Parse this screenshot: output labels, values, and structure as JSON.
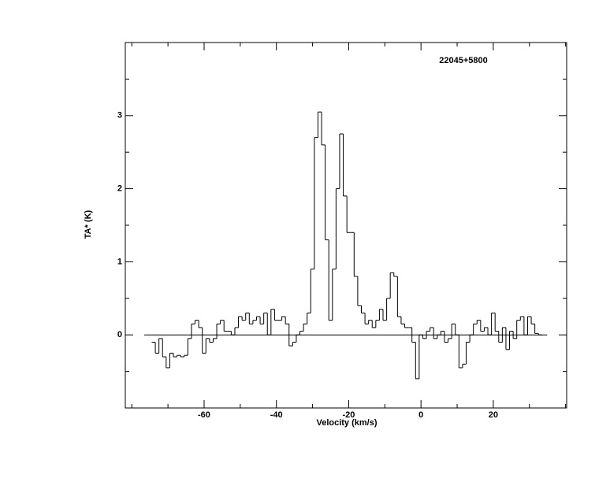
{
  "chart_data": {
    "type": "step",
    "annotation": "22045+5800",
    "x_label": "Velocity (km/s)",
    "y_label": "TA* (K)",
    "xlim": [
      -81.8,
      40.3
    ],
    "ylim": [
      -1,
      4
    ],
    "xticks": [
      -60,
      -40,
      -20,
      0,
      20
    ],
    "xticks_minor": [
      -80,
      -70,
      -50,
      -30,
      -10,
      10,
      30,
      40
    ],
    "yticks": [
      0,
      1,
      2,
      3
    ],
    "yticks_minor": [
      -0.5,
      0.5,
      1.5,
      2.5,
      3.5
    ],
    "zero_line": {
      "value": 0,
      "xlim": [
        -76.6,
        34.9
      ]
    },
    "color": "#000000",
    "x": [
      -74,
      -73,
      -72,
      -71,
      -70,
      -69,
      -68,
      -67,
      -66,
      -65,
      -64,
      -63,
      -62,
      -61,
      -60,
      -59,
      -58,
      -57,
      -56,
      -55,
      -54,
      -53,
      -52,
      -51,
      -50,
      -49,
      -48,
      -47,
      -46,
      -45,
      -44,
      -43,
      -42,
      -41,
      -40,
      -39,
      -38,
      -37,
      -36,
      -35,
      -34,
      -33,
      -32,
      -31,
      -30,
      -29,
      -28,
      -27,
      -26,
      -25,
      -24,
      -23,
      -22,
      -21,
      -20,
      -19,
      -18,
      -17,
      -16,
      -15,
      -14,
      -13,
      -12,
      -11,
      -10,
      -9,
      -8,
      -7,
      -6,
      -5,
      -4,
      -3,
      -2,
      -1,
      0,
      1,
      2,
      3,
      4,
      5,
      6,
      7,
      8,
      9,
      10,
      11,
      12,
      13,
      14,
      15,
      16,
      17,
      18,
      19,
      20,
      21,
      22,
      23,
      24,
      25,
      26,
      27,
      28,
      29,
      30,
      31,
      32,
      33
    ],
    "values": [
      -0.1,
      -0.25,
      -0.05,
      -0.3,
      -0.45,
      -0.25,
      -0.3,
      -0.28,
      -0.3,
      -0.28,
      -0.05,
      0.15,
      0.2,
      0.1,
      -0.25,
      -0.05,
      -0.1,
      -0.05,
      0.15,
      0.2,
      0.05,
      0.05,
      0.0,
      0.1,
      0.25,
      0.2,
      0.3,
      0.15,
      0.2,
      0.25,
      0.15,
      0.3,
      0.0,
      0.35,
      0.2,
      0.2,
      0.25,
      0.15,
      -0.15,
      -0.1,
      0.0,
      0.05,
      0.15,
      0.3,
      0.9,
      2.7,
      3.05,
      2.6,
      1.3,
      0.2,
      0.9,
      2.0,
      2.75,
      1.9,
      1.4,
      1.4,
      0.8,
      0.4,
      0.3,
      0.15,
      0.2,
      0.1,
      0.2,
      0.35,
      0.2,
      0.5,
      0.85,
      0.8,
      0.25,
      0.15,
      0.1,
      0.1,
      -0.1,
      -0.6,
      0.0,
      -0.05,
      0.05,
      0.1,
      -0.05,
      0.0,
      0.05,
      -0.1,
      -0.05,
      0.15,
      0.0,
      -0.45,
      -0.4,
      -0.1,
      0.0,
      0.15,
      0.2,
      0.05,
      0.1,
      0.0,
      0.3,
      0.05,
      -0.1,
      0.1,
      -0.2,
      0.05,
      -0.05,
      0.2,
      0.25,
      0.0,
      0.25,
      0.15,
      0.02,
      0.0
    ]
  }
}
